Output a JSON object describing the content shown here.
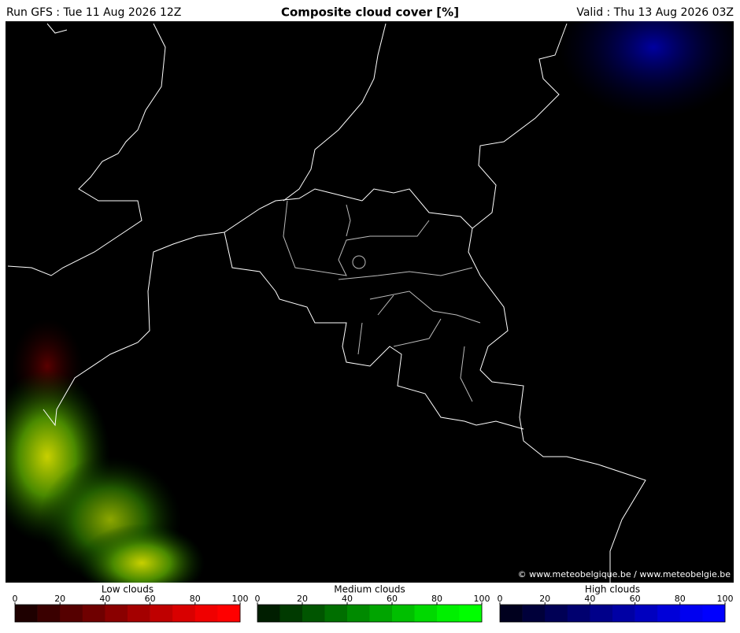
{
  "header": {
    "run": "Run GFS : Tue 11 Aug 2026 12Z",
    "title": "Composite cloud cover [%]",
    "valid": "Valid : Thu 13 Aug 2026 03Z"
  },
  "credit": "© www.meteobelgique.be / www.meteobelgie.be",
  "legends": [
    {
      "title": "Low clouds",
      "ticks": [
        0,
        20,
        40,
        60,
        80,
        100
      ],
      "colors": [
        "#1e0000",
        "#3a0000",
        "#550000",
        "#6f0000",
        "#8a0000",
        "#a40000",
        "#bf0000",
        "#d90000",
        "#f00000",
        "#ff0000"
      ]
    },
    {
      "title": "Medium clouds",
      "ticks": [
        0,
        20,
        40,
        60,
        80,
        100
      ],
      "colors": [
        "#001e00",
        "#003a00",
        "#005500",
        "#006f00",
        "#008a00",
        "#00a400",
        "#00bf00",
        "#00d900",
        "#00f000",
        "#00ff00"
      ]
    },
    {
      "title": "High clouds",
      "ticks": [
        0,
        20,
        40,
        60,
        80,
        100
      ],
      "colors": [
        "#00001e",
        "#00003a",
        "#000055",
        "#00006f",
        "#00008a",
        "#0000a4",
        "#0000bf",
        "#0000d9",
        "#0000f0",
        "#0000ff"
      ]
    }
  ]
}
